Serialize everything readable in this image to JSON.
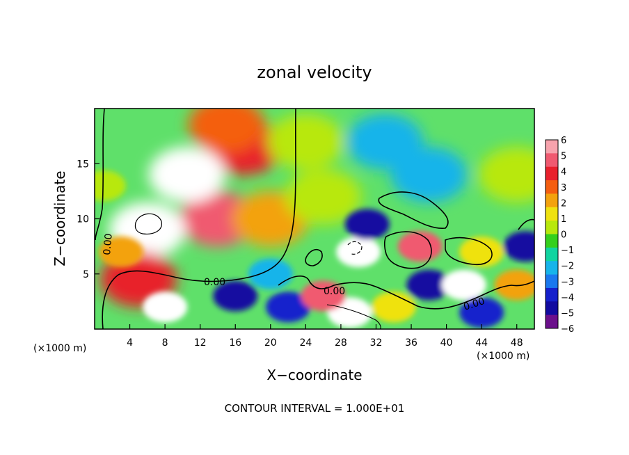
{
  "chart_data": {
    "type": "heatmap",
    "title": "zonal velocity",
    "xlabel": "X−coordinate",
    "ylabel": "Z−coordinate",
    "x_unit_label": "(×1000 m)",
    "xlim": [
      0,
      50
    ],
    "ylim": [
      0,
      20
    ],
    "x_ticks": [
      4,
      8,
      12,
      16,
      20,
      24,
      28,
      32,
      36,
      40,
      44,
      48
    ],
    "y_ticks": [
      5,
      10,
      15
    ],
    "colorbar": {
      "range": [
        -6,
        6
      ],
      "ticks": [
        "6",
        "5",
        "4",
        "3",
        "2",
        "1",
        "0",
        "−1",
        "−2",
        "−3",
        "−4",
        "−5",
        "−6"
      ],
      "colors": [
        "#f7a3ad",
        "#f05a70",
        "#e8202c",
        "#f45e10",
        "#f3a20e",
        "#efe210",
        "#b8e80c",
        "#34d01c",
        "#10d4a0",
        "#16b4ea",
        "#1a78ee",
        "#1520cc",
        "#120ba0",
        "#6c108c"
      ]
    },
    "contour_labels": [
      "0.00",
      "0.00",
      "0.00",
      "0.00"
    ],
    "footer": "CONTOUR INTERVAL = 1.000E+01",
    "regions": [
      {
        "x": 14,
        "z": 10,
        "value": 4.5
      },
      {
        "x": 17,
        "z": 16.5,
        "value": 4.0
      },
      {
        "x": 15,
        "z": 18.5,
        "value": 3.2
      },
      {
        "x": 10.5,
        "z": 14,
        "value": 6.5
      },
      {
        "x": 6,
        "z": 9,
        "value": 6.5
      },
      {
        "x": 5,
        "z": 4.5,
        "value": 4.0
      },
      {
        "x": 20,
        "z": 10,
        "value": 2.0
      },
      {
        "x": 26,
        "z": 12,
        "value": 0.3
      },
      {
        "x": 24,
        "z": 17,
        "value": 0.5
      },
      {
        "x": 33,
        "z": 17,
        "value": -2.5
      },
      {
        "x": 38,
        "z": 14,
        "value": -1.8
      },
      {
        "x": 48,
        "z": 14,
        "value": 0.5
      },
      {
        "x": 30,
        "z": 7,
        "value": 6.5
      },
      {
        "x": 31,
        "z": 9.5,
        "value": -4.8
      },
      {
        "x": 37,
        "z": 7.5,
        "value": 4.5
      },
      {
        "x": 38,
        "z": 4,
        "value": -4.5
      },
      {
        "x": 42,
        "z": 4,
        "value": 6.5
      },
      {
        "x": 8,
        "z": 2,
        "value": 6.5
      },
      {
        "x": 16,
        "z": 3,
        "value": -5.0
      },
      {
        "x": 22,
        "z": 2,
        "value": -4.0
      },
      {
        "x": 29,
        "z": 1.5,
        "value": 6.5
      },
      {
        "x": 26,
        "z": 3,
        "value": 4.5
      },
      {
        "x": 44,
        "z": 7,
        "value": 1.0
      },
      {
        "x": 49,
        "z": 7.5,
        "value": -4.5
      },
      {
        "x": 48,
        "z": 4,
        "value": 2.5
      },
      {
        "x": 44,
        "z": 1.5,
        "value": -4.0
      },
      {
        "x": 34,
        "z": 2,
        "value": 1.5
      },
      {
        "x": 1,
        "z": 13,
        "value": 0.8
      },
      {
        "x": 3,
        "z": 7,
        "value": 2.5
      },
      {
        "x": 20,
        "z": 5,
        "value": -2.5
      }
    ]
  }
}
